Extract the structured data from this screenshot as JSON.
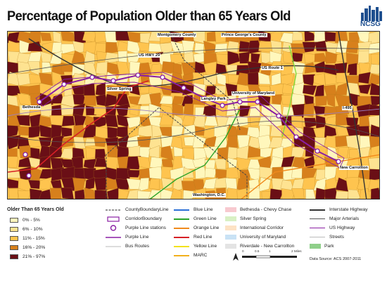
{
  "title": "Percentage of Population Older than 65 Years Old",
  "logo": "NCSG",
  "map_labels": {
    "montgomery": "Montgomery County",
    "princegeorges": "Prince George's County",
    "us29": "US HWY 29",
    "usroute1": "US Route 1",
    "silverspring": "Silver Spring",
    "bethesda": "Bethesda",
    "langley": "Langley Park",
    "umd": "University of Maryland",
    "i495": "I-495",
    "newcarrollton": "New Carrollton",
    "washington": "Washington, D.C."
  },
  "legend": {
    "title": "Older Than 65 Years Old",
    "classes": [
      {
        "label": "0% - 5%",
        "color": "#fff7bc"
      },
      {
        "label": "6% - 10%",
        "color": "#fee391"
      },
      {
        "label": "11% - 15%",
        "color": "#fec44f"
      },
      {
        "label": "16% - 20%",
        "color": "#d7801c"
      },
      {
        "label": "21% - 97%",
        "color": "#6a0f16"
      }
    ],
    "col2": [
      {
        "label": "CountyBoundaryLine"
      },
      {
        "label": "CorridorBoundary"
      },
      {
        "label": "Purple Line stations"
      },
      {
        "label": "Purple Line"
      },
      {
        "label": "Bus Routes"
      }
    ],
    "lines": [
      {
        "label": "Blue Line",
        "color": "#2b6fd6"
      },
      {
        "label": "Green Line",
        "color": "#29a329"
      },
      {
        "label": "Orange Line",
        "color": "#f08a1c"
      },
      {
        "label": "Red Line",
        "color": "#d61f26"
      },
      {
        "label": "Yellow Line",
        "color": "#f2e21c"
      },
      {
        "label": "MARC",
        "color": "#f2b01c"
      }
    ],
    "areas": [
      {
        "label": "Bethesda - Chevy Chase",
        "color": "#f7c9cf"
      },
      {
        "label": "Silver Spring",
        "color": "#d8f0c4"
      },
      {
        "label": "International Corridor",
        "color": "#fde2c4"
      },
      {
        "label": "University of Maryland",
        "color": "#c9e2f5"
      },
      {
        "label": "Riverdale - New Carrollton",
        "color": "#e4e4e4"
      }
    ],
    "roads": [
      {
        "label": "Interstate Highway"
      },
      {
        "label": "Major Arterials"
      },
      {
        "label": "US Highway"
      },
      {
        "label": "Streets"
      },
      {
        "label": "Park",
        "color": "#8fcf8a"
      }
    ]
  },
  "scale_labels": [
    "0",
    "0.5",
    "1",
    "2 Miles"
  ],
  "source": "Data Source: ACS 2007-2011",
  "colors": {
    "purple": "#8a1fa3",
    "red": "#d61f26",
    "green": "#29a329",
    "orange": "#f08a1c",
    "yellow": "#f2e21c",
    "lightgreen": "#7ddb3a"
  }
}
